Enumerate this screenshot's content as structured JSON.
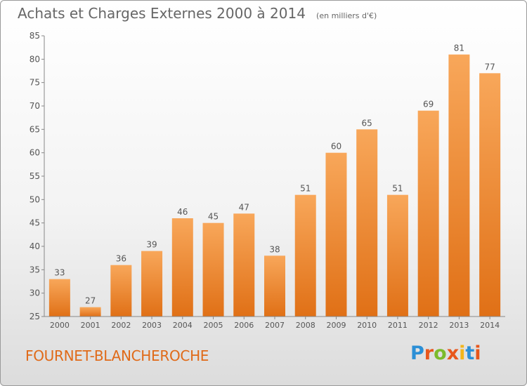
{
  "chart_data": {
    "type": "bar",
    "title": "Achats et Charges Externes 2000 à 2014",
    "subtitle": "(en milliers d'€)",
    "categories": [
      "2000",
      "2001",
      "2002",
      "2003",
      "2004",
      "2005",
      "2006",
      "2007",
      "2008",
      "2009",
      "2010",
      "2011",
      "2012",
      "2013",
      "2014"
    ],
    "values": [
      33,
      27,
      36,
      39,
      46,
      45,
      47,
      38,
      51,
      60,
      65,
      51,
      69,
      81,
      77
    ],
    "y_ticks": [
      "25",
      "30",
      "35",
      "40",
      "45",
      "50",
      "55",
      "60",
      "65",
      "70",
      "75",
      "80",
      "85"
    ],
    "ylim": [
      25,
      85
    ],
    "xlabel": "",
    "ylabel": "",
    "grid": false,
    "bar_color": "#f08a32"
  },
  "footer": {
    "commune": "FOURNET-BLANCHEROCHE",
    "brand": "Proxiti",
    "brand_colors": [
      "#2b8fd6",
      "#e8561b",
      "#7cbb2b",
      "#e8561b",
      "#f2b51b",
      "#2b8fd6",
      "#e8561b"
    ]
  }
}
